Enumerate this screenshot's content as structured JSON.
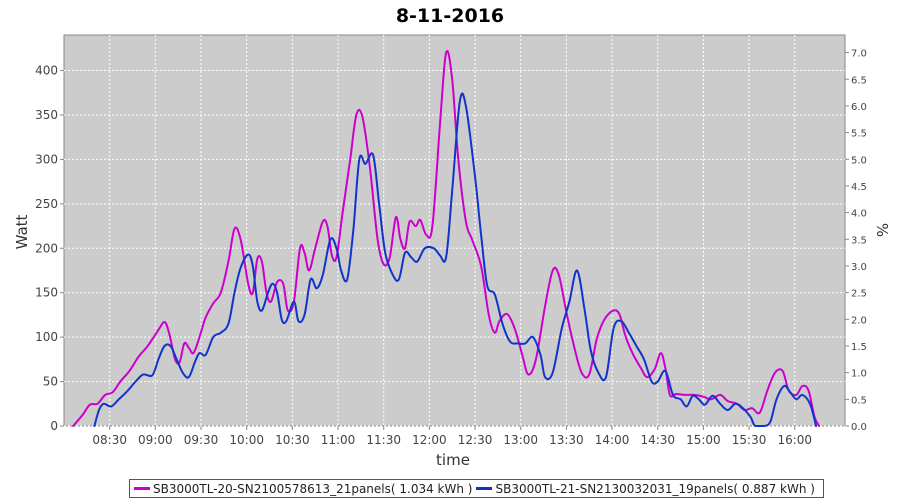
{
  "chart_data": {
    "type": "line",
    "title": "8-11-2016",
    "xlabel": "time",
    "ylabel": "Watt",
    "y2label": "%",
    "ylim": [
      0,
      440
    ],
    "y2lim": [
      0,
      7.33
    ],
    "x_ticks": [
      "08:30",
      "09:00",
      "09:30",
      "10:00",
      "10:30",
      "11:00",
      "11:30",
      "12:00",
      "12:30",
      "13:00",
      "13:30",
      "14:00",
      "14:30",
      "15:00",
      "15:30",
      "16:00"
    ],
    "y_ticks": [
      "0",
      "50",
      "100",
      "150",
      "200",
      "250",
      "300",
      "350",
      "400"
    ],
    "y2_ticks": [
      "0.0",
      "0.5",
      "1.0",
      "1.5",
      "2.0",
      "2.5",
      "3.0",
      "3.5",
      "4.0",
      "4.5",
      "5.0",
      "5.5",
      "6.0",
      "6.5",
      "7.0"
    ],
    "grid": true,
    "legend_position": "bottom",
    "background": "#cccccc",
    "series": [
      {
        "name": "SB3000TL-20-SN2100578613_21panels( 1.034 kWh )",
        "color": "#cc00cc",
        "points": [
          [
            "08:06",
            0
          ],
          [
            "08:12",
            12
          ],
          [
            "08:17",
            24
          ],
          [
            "08:22",
            25
          ],
          [
            "08:27",
            35
          ],
          [
            "08:32",
            38
          ],
          [
            "08:37",
            50
          ],
          [
            "08:43",
            62
          ],
          [
            "08:49",
            78
          ],
          [
            "08:55",
            90
          ],
          [
            "09:02",
            108
          ],
          [
            "09:06",
            117
          ],
          [
            "09:09",
            105
          ],
          [
            "09:13",
            75
          ],
          [
            "09:16",
            72
          ],
          [
            "09:19",
            93
          ],
          [
            "09:22",
            88
          ],
          [
            "09:25",
            82
          ],
          [
            "09:29",
            100
          ],
          [
            "09:33",
            122
          ],
          [
            "09:38",
            138
          ],
          [
            "09:43",
            150
          ],
          [
            "09:48",
            185
          ],
          [
            "09:52",
            222
          ],
          [
            "09:56",
            210
          ],
          [
            "10:01",
            160
          ],
          [
            "10:04",
            150
          ],
          [
            "10:07",
            188
          ],
          [
            "10:10",
            185
          ],
          [
            "10:13",
            150
          ],
          [
            "10:16",
            140
          ],
          [
            "10:20",
            162
          ],
          [
            "10:24",
            160
          ],
          [
            "10:27",
            130
          ],
          [
            "10:31",
            140
          ],
          [
            "10:35",
            200
          ],
          [
            "10:38",
            195
          ],
          [
            "10:41",
            175
          ],
          [
            "10:45",
            200
          ],
          [
            "10:50",
            230
          ],
          [
            "10:53",
            225
          ],
          [
            "10:56",
            192
          ],
          [
            "10:59",
            190
          ],
          [
            "11:03",
            240
          ],
          [
            "11:08",
            300
          ],
          [
            "11:12",
            350
          ],
          [
            "11:16",
            348
          ],
          [
            "11:21",
            290
          ],
          [
            "11:26",
            210
          ],
          [
            "11:30",
            182
          ],
          [
            "11:34",
            190
          ],
          [
            "11:38",
            235
          ],
          [
            "11:41",
            210
          ],
          [
            "11:44",
            200
          ],
          [
            "11:47",
            230
          ],
          [
            "11:51",
            225
          ],
          [
            "11:54",
            232
          ],
          [
            "11:58",
            215
          ],
          [
            "12:02",
            225
          ],
          [
            "12:07",
            340
          ],
          [
            "12:11",
            420
          ],
          [
            "12:15",
            390
          ],
          [
            "12:19",
            300
          ],
          [
            "12:24",
            230
          ],
          [
            "12:28",
            210
          ],
          [
            "12:34",
            180
          ],
          [
            "12:39",
            125
          ],
          [
            "12:43",
            105
          ],
          [
            "12:46",
            118
          ],
          [
            "12:51",
            126
          ],
          [
            "12:56",
            110
          ],
          [
            "13:01",
            80
          ],
          [
            "13:05",
            58
          ],
          [
            "13:10",
            75
          ],
          [
            "13:16",
            135
          ],
          [
            "13:21",
            175
          ],
          [
            "13:25",
            170
          ],
          [
            "13:30",
            128
          ],
          [
            "13:35",
            90
          ],
          [
            "13:40",
            60
          ],
          [
            "13:45",
            58
          ],
          [
            "13:50",
            98
          ],
          [
            "13:55",
            120
          ],
          [
            "14:01",
            130
          ],
          [
            "14:05",
            125
          ],
          [
            "14:09",
            100
          ],
          [
            "14:14",
            80
          ],
          [
            "14:19",
            65
          ],
          [
            "14:23",
            55
          ],
          [
            "14:28",
            64
          ],
          [
            "14:32",
            82
          ],
          [
            "14:35",
            65
          ],
          [
            "14:38",
            35
          ],
          [
            "14:42",
            36
          ],
          [
            "14:48",
            35
          ],
          [
            "14:54",
            35
          ],
          [
            "15:00",
            33
          ],
          [
            "15:05",
            30
          ],
          [
            "15:11",
            35
          ],
          [
            "15:16",
            28
          ],
          [
            "15:22",
            25
          ],
          [
            "15:27",
            18
          ],
          [
            "15:32",
            20
          ],
          [
            "15:37",
            15
          ],
          [
            "15:42",
            40
          ],
          [
            "15:47",
            60
          ],
          [
            "15:52",
            62
          ],
          [
            "15:56",
            40
          ],
          [
            "16:01",
            35
          ],
          [
            "16:05",
            45
          ],
          [
            "16:09",
            40
          ],
          [
            "16:13",
            10
          ],
          [
            "16:16",
            0
          ]
        ]
      },
      {
        "name": "SB3000TL-21-SN2130032031_19panels( 0.887 kWh )",
        "color": "#1133cc",
        "points": [
          [
            "08:20",
            0
          ],
          [
            "08:23",
            18
          ],
          [
            "08:26",
            25
          ],
          [
            "08:31",
            22
          ],
          [
            "08:36",
            30
          ],
          [
            "08:42",
            40
          ],
          [
            "08:47",
            50
          ],
          [
            "08:52",
            58
          ],
          [
            "08:58",
            57
          ],
          [
            "09:02",
            75
          ],
          [
            "09:06",
            90
          ],
          [
            "09:10",
            90
          ],
          [
            "09:14",
            75
          ],
          [
            "09:18",
            60
          ],
          [
            "09:22",
            55
          ],
          [
            "09:26",
            72
          ],
          [
            "09:29",
            82
          ],
          [
            "09:33",
            80
          ],
          [
            "09:38",
            100
          ],
          [
            "09:43",
            105
          ],
          [
            "09:48",
            115
          ],
          [
            "09:52",
            150
          ],
          [
            "09:56",
            178
          ],
          [
            "10:01",
            193
          ],
          [
            "10:04",
            180
          ],
          [
            "10:07",
            140
          ],
          [
            "10:10",
            130
          ],
          [
            "10:14",
            150
          ],
          [
            "10:17",
            160
          ],
          [
            "10:20",
            150
          ],
          [
            "10:23",
            120
          ],
          [
            "10:26",
            118
          ],
          [
            "10:31",
            140
          ],
          [
            "10:34",
            118
          ],
          [
            "10:38",
            125
          ],
          [
            "10:42",
            165
          ],
          [
            "10:46",
            155
          ],
          [
            "10:50",
            170
          ],
          [
            "10:55",
            210
          ],
          [
            "10:59",
            200
          ],
          [
            "11:02",
            175
          ],
          [
            "11:06",
            165
          ],
          [
            "11:10",
            220
          ],
          [
            "11:14",
            300
          ],
          [
            "11:18",
            295
          ],
          [
            "11:23",
            305
          ],
          [
            "11:27",
            250
          ],
          [
            "11:31",
            195
          ],
          [
            "11:36",
            170
          ],
          [
            "11:40",
            165
          ],
          [
            "11:44",
            195
          ],
          [
            "11:48",
            190
          ],
          [
            "11:52",
            185
          ],
          [
            "11:57",
            200
          ],
          [
            "12:03",
            200
          ],
          [
            "12:07",
            192
          ],
          [
            "12:11",
            190
          ],
          [
            "12:15",
            265
          ],
          [
            "12:20",
            365
          ],
          [
            "12:24",
            360
          ],
          [
            "12:30",
            280
          ],
          [
            "12:34",
            215
          ],
          [
            "12:38",
            158
          ],
          [
            "12:43",
            148
          ],
          [
            "12:48",
            115
          ],
          [
            "12:53",
            95
          ],
          [
            "12:58",
            93
          ],
          [
            "13:03",
            93
          ],
          [
            "13:08",
            100
          ],
          [
            "13:13",
            80
          ],
          [
            "13:16",
            55
          ],
          [
            "13:21",
            60
          ],
          [
            "13:27",
            110
          ],
          [
            "13:32",
            140
          ],
          [
            "13:37",
            175
          ],
          [
            "13:42",
            130
          ],
          [
            "13:46",
            85
          ],
          [
            "13:51",
            60
          ],
          [
            "13:56",
            55
          ],
          [
            "14:01",
            110
          ],
          [
            "14:06",
            118
          ],
          [
            "14:11",
            105
          ],
          [
            "14:16",
            90
          ],
          [
            "14:21",
            75
          ],
          [
            "14:26",
            50
          ],
          [
            "14:30",
            50
          ],
          [
            "14:35",
            62
          ],
          [
            "14:40",
            35
          ],
          [
            "14:45",
            30
          ],
          [
            "14:49",
            22
          ],
          [
            "14:53",
            34
          ],
          [
            "14:57",
            30
          ],
          [
            "15:01",
            24
          ],
          [
            "15:06",
            34
          ],
          [
            "15:11",
            25
          ],
          [
            "15:16",
            18
          ],
          [
            "15:21",
            25
          ],
          [
            "15:26",
            20
          ],
          [
            "15:31",
            10
          ],
          [
            "15:34",
            0
          ],
          [
            "15:40",
            0
          ],
          [
            "15:44",
            5
          ],
          [
            "15:48",
            30
          ],
          [
            "15:53",
            45
          ],
          [
            "15:57",
            38
          ],
          [
            "16:01",
            30
          ],
          [
            "16:05",
            35
          ],
          [
            "16:10",
            25
          ],
          [
            "16:14",
            0
          ]
        ]
      }
    ]
  },
  "legend": {
    "series1_label": "SB3000TL-20-SN2100578613_21panels( 1.034 kWh )",
    "series2_label": "SB3000TL-21-SN2130032031_19panels( 0.887 kWh )"
  }
}
